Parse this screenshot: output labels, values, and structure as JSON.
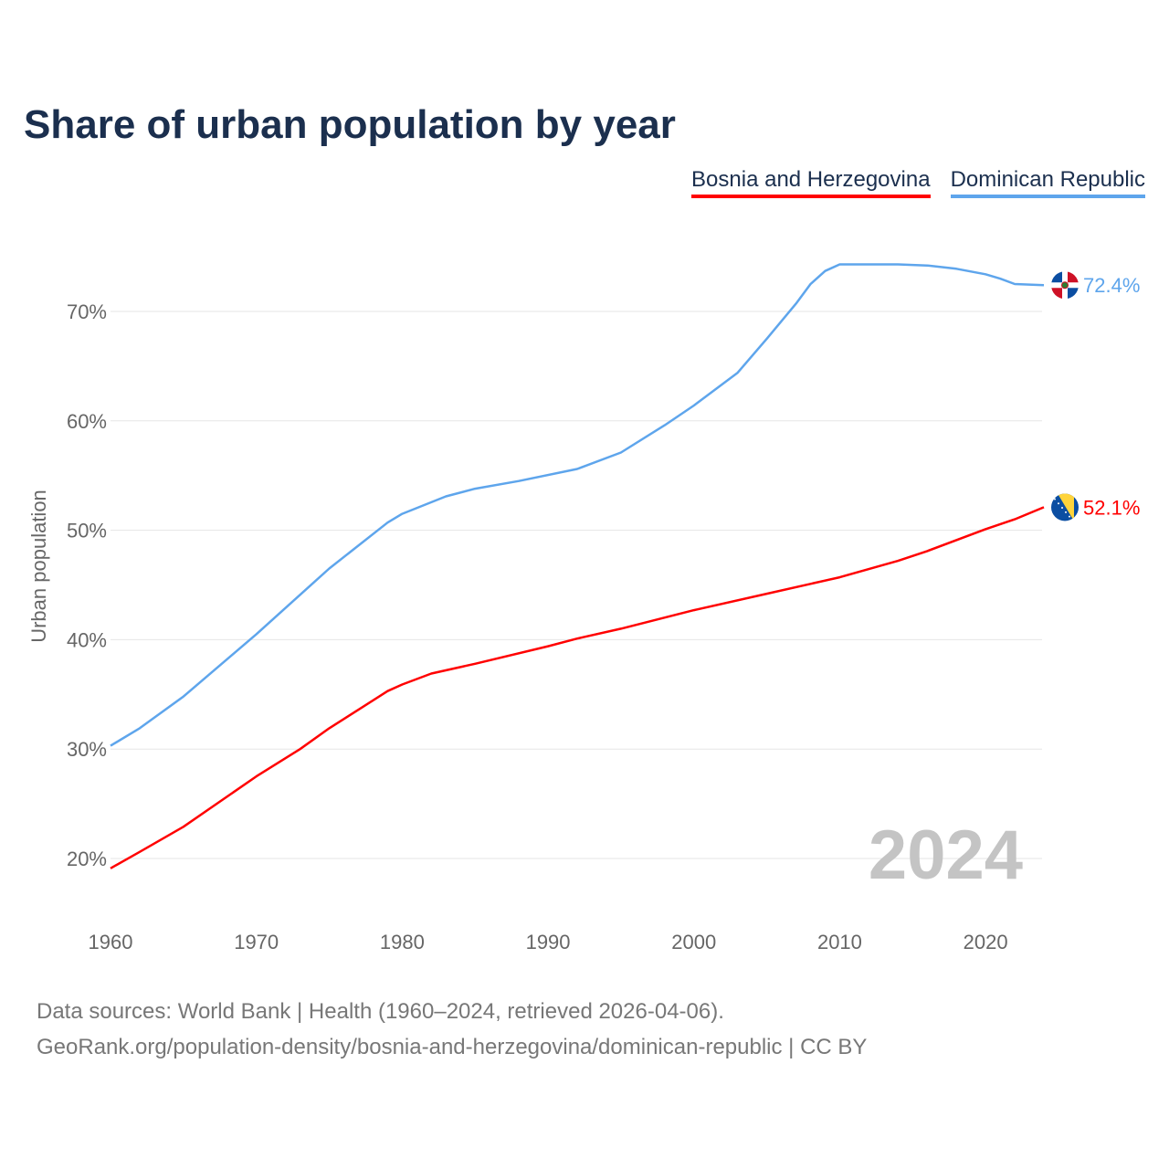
{
  "title": "Share of urban population by year",
  "footer": {
    "line1": "Data sources: World Bank | Health (1960–2024, retrieved 2026-04-06).",
    "line2": "GeoRank.org/population-density/bosnia-and-herzegovina/dominican-republic | CC BY"
  },
  "chart_data": {
    "type": "line",
    "title": "Share of urban population by year",
    "xlabel": "",
    "ylabel": "Urban population",
    "xlim": [
      1960,
      2024
    ],
    "ylim": [
      15,
      77
    ],
    "x_ticks": [
      "1960",
      "1970",
      "1980",
      "1990",
      "2000",
      "2010",
      "2020"
    ],
    "y_ticks": [
      "20%",
      "30%",
      "40%",
      "50%",
      "60%",
      "70%"
    ],
    "year_watermark": "2024",
    "legend_position": "top-right",
    "grid": true,
    "series": [
      {
        "name": "Bosnia and Herzegovina",
        "color": "#ff0000",
        "end_label": "52.1%",
        "flag": "bosnia-flag-icon",
        "points": [
          [
            1960,
            19.1
          ],
          [
            1962,
            20.6
          ],
          [
            1965,
            22.9
          ],
          [
            1970,
            27.5
          ],
          [
            1973,
            30.0
          ],
          [
            1975,
            31.9
          ],
          [
            1977,
            33.6
          ],
          [
            1979,
            35.3
          ],
          [
            1980,
            35.9
          ],
          [
            1982,
            36.9
          ],
          [
            1985,
            37.8
          ],
          [
            1990,
            39.4
          ],
          [
            1992,
            40.1
          ],
          [
            1995,
            41.0
          ],
          [
            2000,
            42.7
          ],
          [
            2005,
            44.2
          ],
          [
            2010,
            45.7
          ],
          [
            2014,
            47.2
          ],
          [
            2016,
            48.1
          ],
          [
            2020,
            50.1
          ],
          [
            2022,
            51.0
          ],
          [
            2024,
            52.1
          ]
        ]
      },
      {
        "name": "Dominican Republic",
        "color": "#5ea5ec",
        "end_label": "72.4%",
        "flag": "dominican-republic-flag-icon",
        "points": [
          [
            1960,
            30.3
          ],
          [
            1962,
            31.9
          ],
          [
            1965,
            34.8
          ],
          [
            1970,
            40.5
          ],
          [
            1975,
            46.5
          ],
          [
            1979,
            50.7
          ],
          [
            1980,
            51.5
          ],
          [
            1983,
            53.1
          ],
          [
            1985,
            53.8
          ],
          [
            1988,
            54.5
          ],
          [
            1992,
            55.6
          ],
          [
            1995,
            57.1
          ],
          [
            1998,
            59.6
          ],
          [
            2000,
            61.4
          ],
          [
            2003,
            64.4
          ],
          [
            2005,
            67.5
          ],
          [
            2007,
            70.7
          ],
          [
            2008,
            72.5
          ],
          [
            2009,
            73.7
          ],
          [
            2010,
            74.3
          ],
          [
            2014,
            74.3
          ],
          [
            2016,
            74.2
          ],
          [
            2018,
            73.9
          ],
          [
            2020,
            73.4
          ],
          [
            2021,
            73.0
          ],
          [
            2022,
            72.5
          ],
          [
            2024,
            72.4
          ]
        ]
      }
    ]
  }
}
